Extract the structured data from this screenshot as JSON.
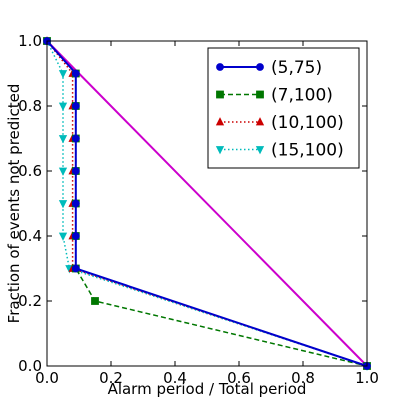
{
  "chart_data": {
    "type": "line",
    "title": "",
    "xlabel": "Alarm period / Total period",
    "ylabel": "Fraction of events not predicted",
    "xlim": [
      0,
      1
    ],
    "ylim": [
      0,
      1
    ],
    "xticks": [
      "0.0",
      "0.2",
      "0.4",
      "0.6",
      "0.8",
      "1.0"
    ],
    "yticks": [
      "0.0",
      "0.2",
      "0.4",
      "0.6",
      "0.8",
      "1.0"
    ],
    "grid": false,
    "legend_position": "top-right",
    "series": [
      {
        "name": "(5,75)",
        "color": "#0000cc",
        "line_style": "solid",
        "marker": "circle",
        "points": [
          [
            0,
            1.0
          ],
          [
            0.09,
            0.9
          ],
          [
            0.09,
            0.8
          ],
          [
            0.09,
            0.7
          ],
          [
            0.09,
            0.6
          ],
          [
            0.09,
            0.5
          ],
          [
            0.09,
            0.4
          ],
          [
            0.09,
            0.3
          ],
          [
            1.0,
            0.0
          ]
        ]
      },
      {
        "name": "(7,100)",
        "color": "#007700",
        "line_style": "dashed",
        "marker": "square",
        "points": [
          [
            0,
            1.0
          ],
          [
            0.09,
            0.9
          ],
          [
            0.09,
            0.8
          ],
          [
            0.09,
            0.7
          ],
          [
            0.09,
            0.6
          ],
          [
            0.09,
            0.5
          ],
          [
            0.09,
            0.4
          ],
          [
            0.09,
            0.3
          ],
          [
            0.15,
            0.2
          ],
          [
            1.0,
            0.0
          ]
        ]
      },
      {
        "name": "(10,100)",
        "color": "#cc0000",
        "line_style": "dotted",
        "marker": "triangle-up",
        "points": [
          [
            0,
            1.0
          ],
          [
            0.08,
            0.9
          ],
          [
            0.08,
            0.8
          ],
          [
            0.08,
            0.7
          ],
          [
            0.08,
            0.6
          ],
          [
            0.08,
            0.5
          ],
          [
            0.08,
            0.4
          ],
          [
            0.08,
            0.3
          ],
          [
            1.0,
            0.0
          ]
        ]
      },
      {
        "name": "(15,100)",
        "color": "#00bbbb",
        "line_style": "dotted",
        "marker": "triangle-down",
        "points": [
          [
            0,
            1.0
          ],
          [
            0.05,
            0.9
          ],
          [
            0.05,
            0.8
          ],
          [
            0.05,
            0.7
          ],
          [
            0.05,
            0.6
          ],
          [
            0.05,
            0.5
          ],
          [
            0.05,
            0.4
          ],
          [
            0.07,
            0.3
          ],
          [
            1.0,
            0.0
          ]
        ]
      }
    ],
    "reference_line": {
      "color": "#cc00cc",
      "points": [
        [
          0,
          1.0
        ],
        [
          1.0,
          0.0
        ]
      ]
    }
  }
}
